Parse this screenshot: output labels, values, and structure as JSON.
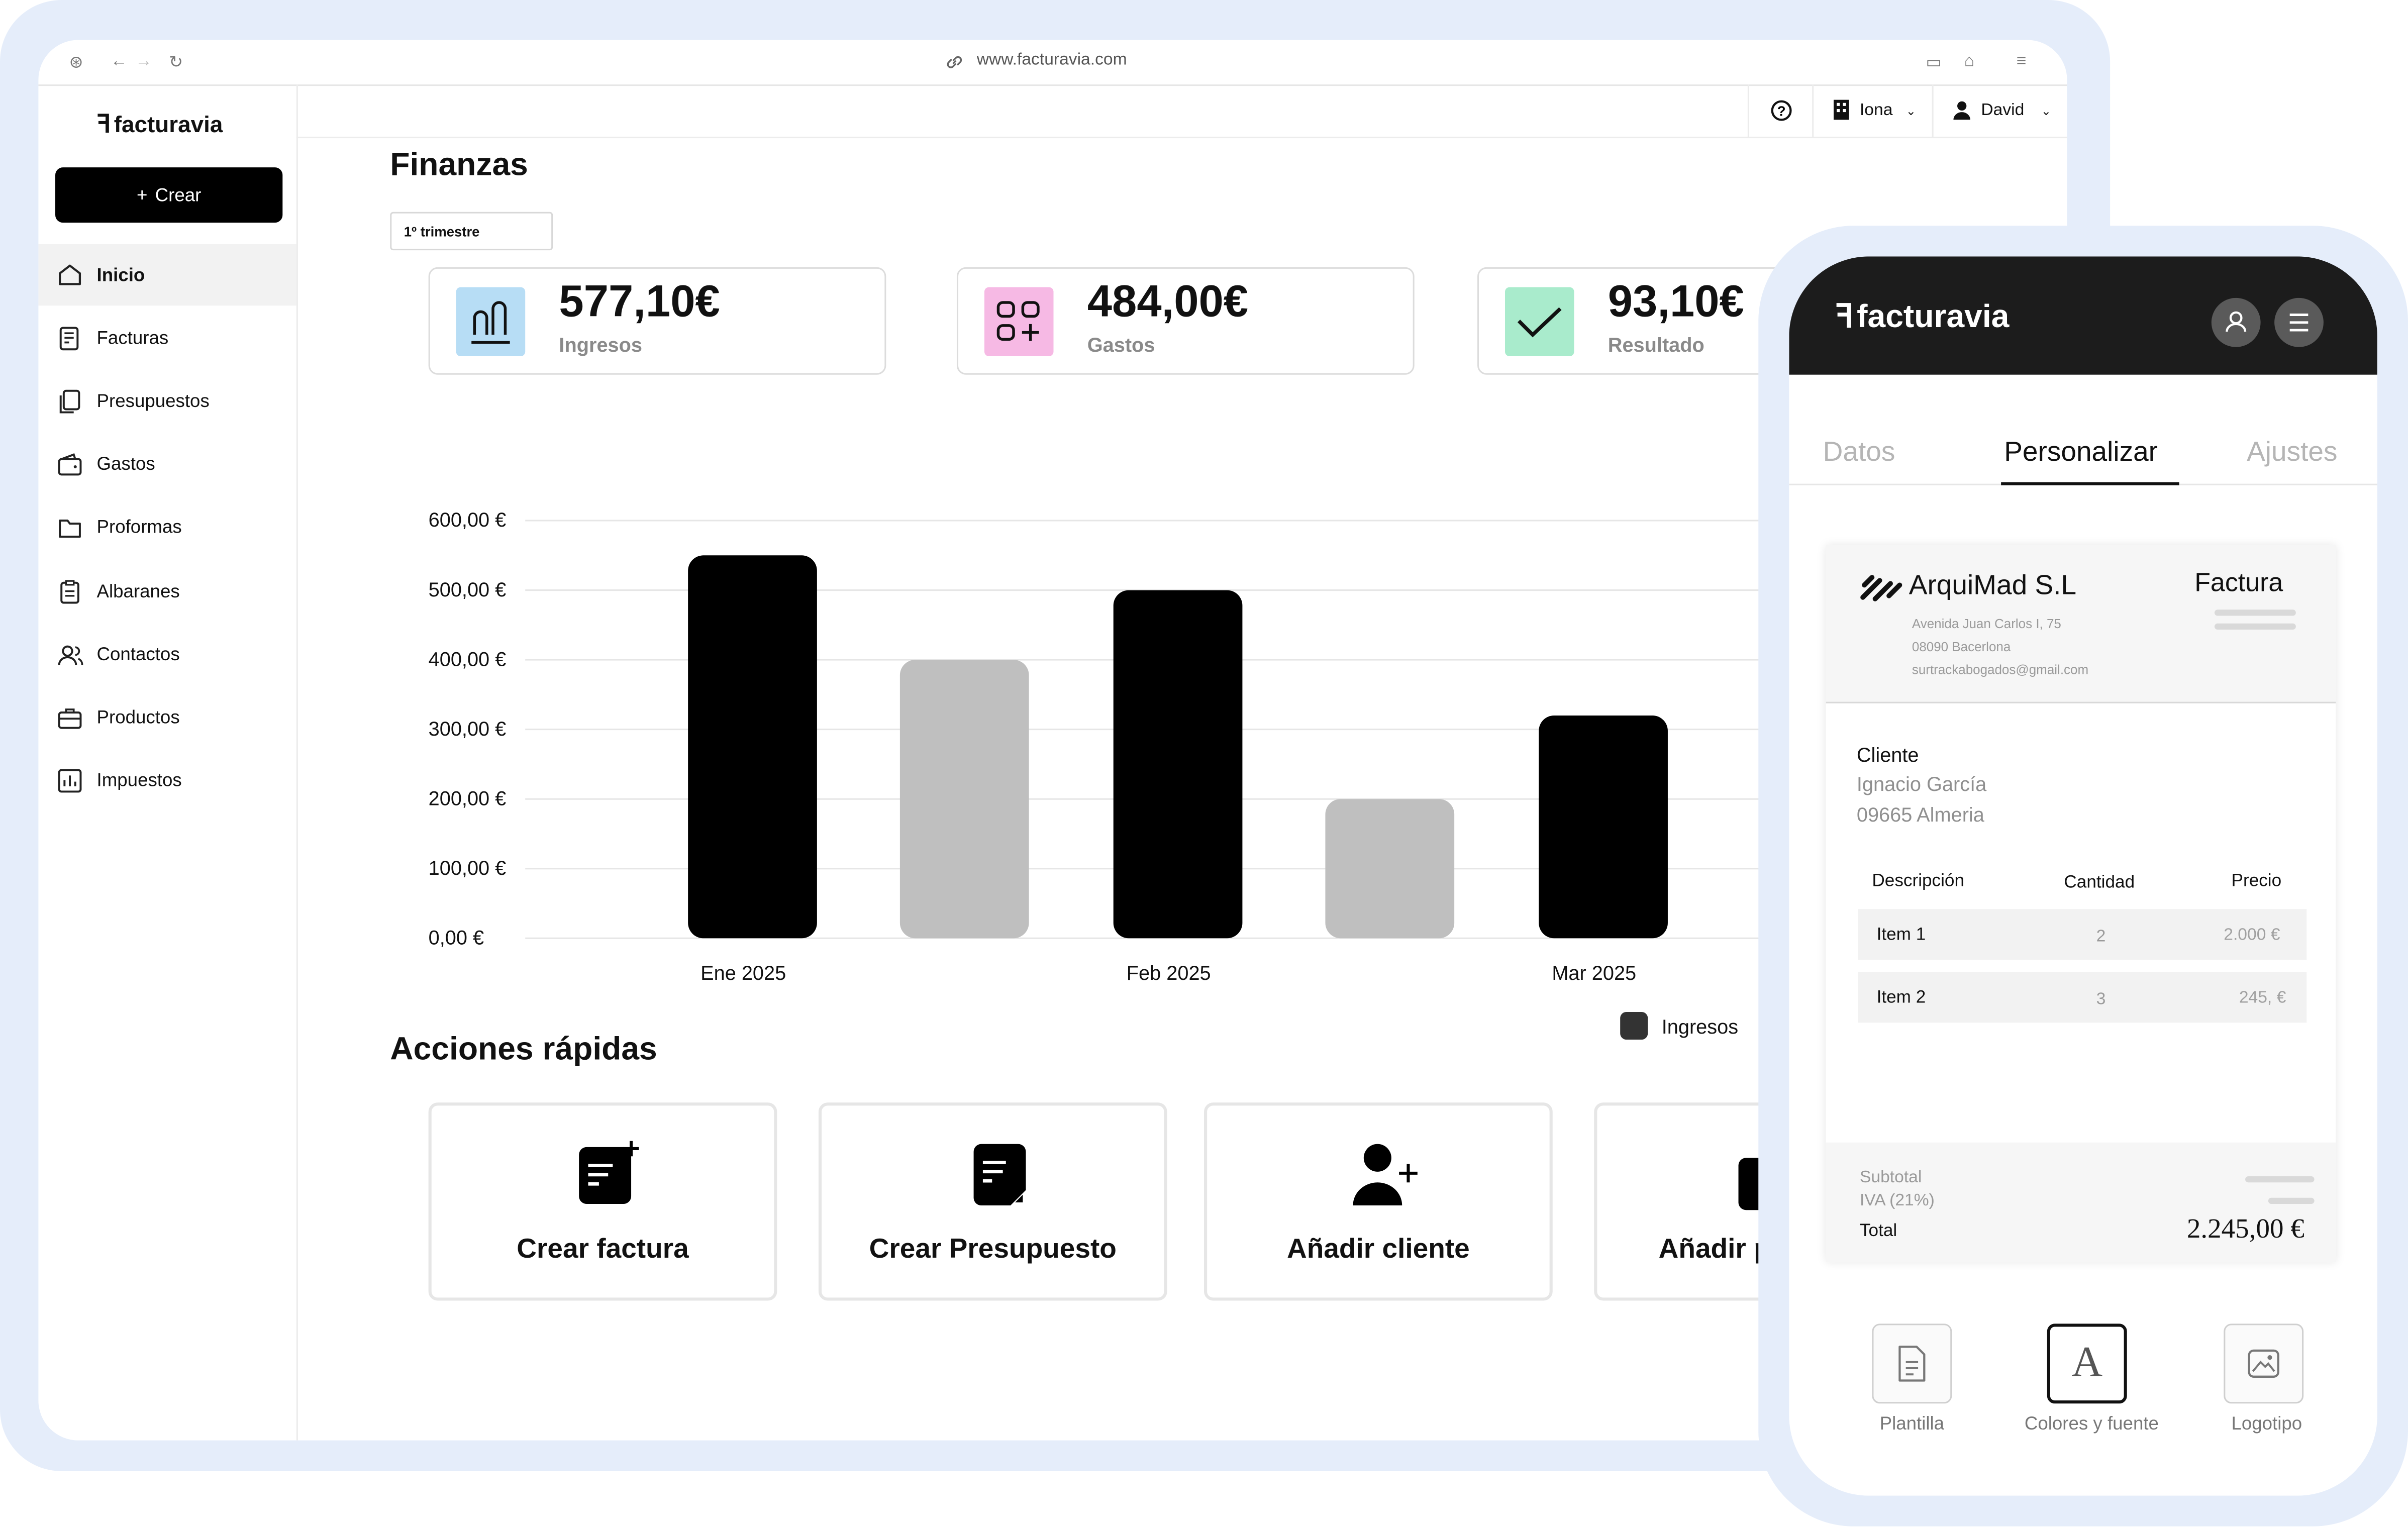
{
  "browser": {
    "url": "www.facturavia.com"
  },
  "app": {
    "brand": "facturavia",
    "create_label": "Crear"
  },
  "sidebar": {
    "items": [
      {
        "label": "Inicio",
        "icon": "home-icon"
      },
      {
        "label": "Facturas",
        "icon": "invoice-icon"
      },
      {
        "label": "Presupuestos",
        "icon": "documents-icon"
      },
      {
        "label": "Gastos",
        "icon": "wallet-icon"
      },
      {
        "label": "Proformas",
        "icon": "folder-icon"
      },
      {
        "label": "Albaranes",
        "icon": "clipboard-icon"
      },
      {
        "label": "Contactos",
        "icon": "users-icon"
      },
      {
        "label": "Productos",
        "icon": "briefcase-icon"
      },
      {
        "label": "Impuestos",
        "icon": "bar-chart-icon"
      }
    ]
  },
  "topbar": {
    "help_icon": "help-icon",
    "company": "Iona",
    "user": "David"
  },
  "main": {
    "title": "Finanzas",
    "period": "1º trimestre",
    "stats": [
      {
        "value": "577,10€",
        "label": "Ingresos",
        "color": "#b7ddf5"
      },
      {
        "value": "484,00€",
        "label": "Gastos",
        "color": "#f6b9e4"
      },
      {
        "value": "93,10€",
        "label": "Resultado",
        "color": "#a9ebcc"
      }
    ],
    "quick_title": "Acciones rápidas",
    "quick_actions": [
      {
        "label": "Crear factura"
      },
      {
        "label": "Crear Presupuesto"
      },
      {
        "label": "Añadir cliente"
      },
      {
        "label": "Añadir p"
      }
    ]
  },
  "chart_data": {
    "type": "bar",
    "y_ticks": [
      "600,00 €",
      "500,00 €",
      "400,00 €",
      "300,00 €",
      "200,00 €",
      "100,00 €",
      "0,00 €"
    ],
    "ylim": [
      0,
      600
    ],
    "categories": [
      "Ene 2025",
      "Feb 2025",
      "Mar 2025"
    ],
    "series": [
      {
        "name": "Ingresos",
        "color": "#000000",
        "values": [
          550,
          500,
          320
        ]
      },
      {
        "color": "#bfbfbf",
        "values": [
          400,
          200,
          null
        ]
      }
    ],
    "legend": "bottom-right",
    "grid": true
  },
  "mobile": {
    "brand": "facturavia",
    "tabs": [
      "Datos",
      "Personalizar",
      "Ajustes"
    ],
    "invoice": {
      "company": "ArquiMad S.L",
      "address1": "Avenida Juan Carlos I, 75",
      "address2": "08090 Bacerlona",
      "email": "surtrackabogados@gmail.com",
      "doc_type": "Factura",
      "client_label": "Cliente",
      "client_name": "Ignacio García",
      "client_city": "09665 Almeria",
      "headers": [
        "Descripción",
        "Cantidad",
        "Precio"
      ],
      "rows": [
        {
          "desc": "Item 1",
          "qty": "2",
          "price": "2.000 €"
        },
        {
          "desc": "Item 2",
          "qty": "3",
          "price": "245, €"
        }
      ],
      "subtotal_label": "Subtotal",
      "iva_label": "IVA (21%)",
      "total_label": "Total",
      "total": "2.245,00 €"
    },
    "tools": [
      "Plantilla",
      "Colores y fuente",
      "Logotipo"
    ]
  }
}
